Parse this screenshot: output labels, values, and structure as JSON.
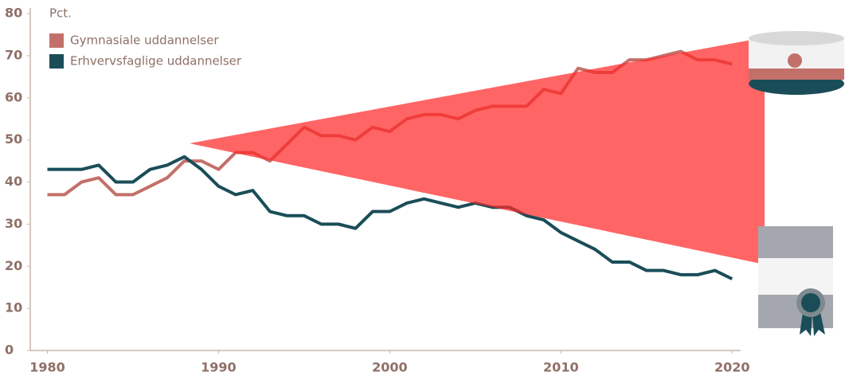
{
  "chart_data": {
    "type": "line",
    "y_label": "Pct.",
    "x": [
      1980,
      1981,
      1982,
      1983,
      1984,
      1985,
      1986,
      1987,
      1988,
      1989,
      1990,
      1991,
      1992,
      1993,
      1994,
      1995,
      1996,
      1997,
      1998,
      1999,
      2000,
      2001,
      2002,
      2003,
      2004,
      2005,
      2006,
      2007,
      2008,
      2009,
      2010,
      2011,
      2012,
      2013,
      2014,
      2015,
      2016,
      2017,
      2018,
      2019,
      2020
    ],
    "series": [
      {
        "name": "Gymnasiale uddannelser",
        "color": "#c4706a",
        "values": [
          37,
          37,
          40,
          41,
          37,
          37,
          39,
          41,
          45,
          45,
          43,
          47,
          47,
          45,
          49,
          53,
          51,
          51,
          50,
          53,
          52,
          55,
          56,
          56,
          55,
          57,
          58,
          58,
          58,
          62,
          61,
          67,
          66,
          66,
          69,
          69,
          70,
          71,
          69,
          69,
          68
        ]
      },
      {
        "name": "Erhvervsfaglige uddannelser",
        "color": "#1a4d58",
        "values": [
          43,
          43,
          43,
          44,
          40,
          40,
          43,
          44,
          46,
          43,
          39,
          37,
          38,
          33,
          32,
          32,
          30,
          30,
          29,
          33,
          33,
          35,
          36,
          35,
          34,
          35,
          34,
          34,
          32,
          31,
          28,
          26,
          24,
          21,
          21,
          19,
          19,
          18,
          18,
          19,
          17
        ]
      }
    ],
    "xlim": [
      1979,
      2020.5
    ],
    "ylim": [
      0,
      80
    ],
    "xticks": [
      1980,
      1990,
      2000,
      2010,
      2020
    ],
    "yticks": [
      0,
      10,
      20,
      30,
      40,
      50,
      60,
      70,
      80
    ]
  }
}
